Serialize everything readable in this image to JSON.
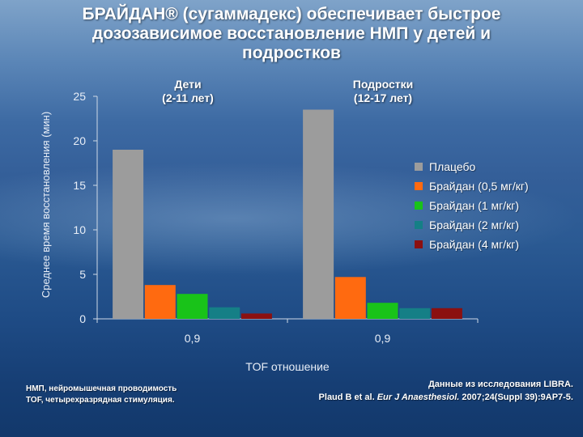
{
  "title_lines": [
    "БРАЙДАН® (сугаммадекс) обеспечивает быстрое",
    "дозозависимое восстановление НМП у детей и",
    "подростков"
  ],
  "chart_data": {
    "type": "bar",
    "groups": [
      {
        "label": "Дети\n(2-11 лет)",
        "tick_label": "0,9"
      },
      {
        "label": "Подростки\n(12-17 лет)",
        "tick_label": "0,9"
      }
    ],
    "series": [
      {
        "name": "Плацебо",
        "color": "#9c9c9c",
        "values": [
          19,
          23.5
        ]
      },
      {
        "name": "Брайдан (0,5 мг/кг)",
        "color": "#ff6a10",
        "values": [
          3.8,
          4.7
        ]
      },
      {
        "name": "Брайдан (1 мг/кг)",
        "color": "#19c319",
        "values": [
          2.8,
          1.8
        ]
      },
      {
        "name": "Брайдан (2 мг/кг)",
        "color": "#157f86",
        "values": [
          1.3,
          1.2
        ]
      },
      {
        "name": "Брайдан (4 мг/кг)",
        "color": "#8b1010",
        "values": [
          0.6,
          1.2
        ]
      }
    ],
    "ylabel": "Среднее время восстановления (мин)",
    "xlabel": "TOF отношение",
    "ylim": [
      0,
      25
    ],
    "yticks": [
      0,
      5,
      10,
      15,
      20,
      25
    ],
    "legend_position": "right",
    "grid": false
  },
  "footnote_left": [
    "НМП, нейромышечная проводимость",
    "TOF, четырехразрядная стимуляция."
  ],
  "footnote_right": {
    "line1": "Данные из исследования  LIBRA.",
    "line2_prefix": "Plaud B et al. ",
    "line2_journal": "Eur J Anaesthesiol.",
    "line2_suffix": " 2007;24(Suppl 39):9AP7-5."
  }
}
